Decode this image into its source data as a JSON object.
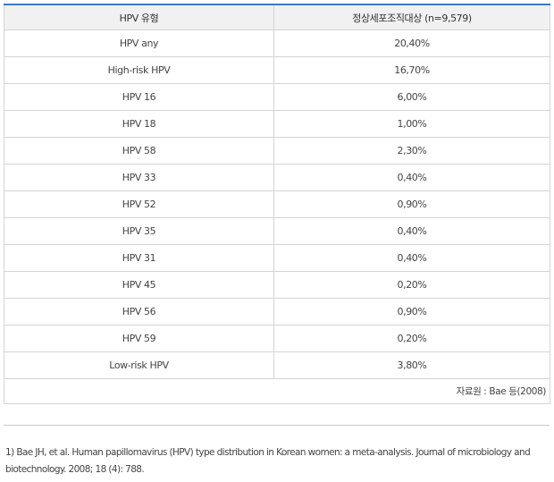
{
  "table": {
    "headers": [
      "HPV 유형",
      "정상세포조직대상 (n=9,579)"
    ],
    "rows": [
      [
        "HPV any",
        "20,40%"
      ],
      [
        "High-risk HPV",
        "16,70%"
      ],
      [
        "HPV 16",
        "6,00%"
      ],
      [
        "HPV 18",
        "1,00%"
      ],
      [
        "HPV 58",
        "2,30%"
      ],
      [
        "HPV 33",
        "0,40%"
      ],
      [
        "HPV 52",
        "0,90%"
      ],
      [
        "HPV 35",
        "0,40%"
      ],
      [
        "HPV 31",
        "0,40%"
      ],
      [
        "HPV 45",
        "0,20%"
      ],
      [
        "HPV 56",
        "0,90%"
      ],
      [
        "HPV 59",
        "0,20%"
      ],
      [
        "Low-risk HPV",
        "3,80%"
      ]
    ],
    "source": "자료원 : Bae 등(2008)"
  },
  "footnote": "1) Bae JH, et al. Human papillomavirus (HPV) type distribution in Korean women: a meta-analysis. Journal of microbiology and biotechnology. 2008; 18 (4): 788."
}
